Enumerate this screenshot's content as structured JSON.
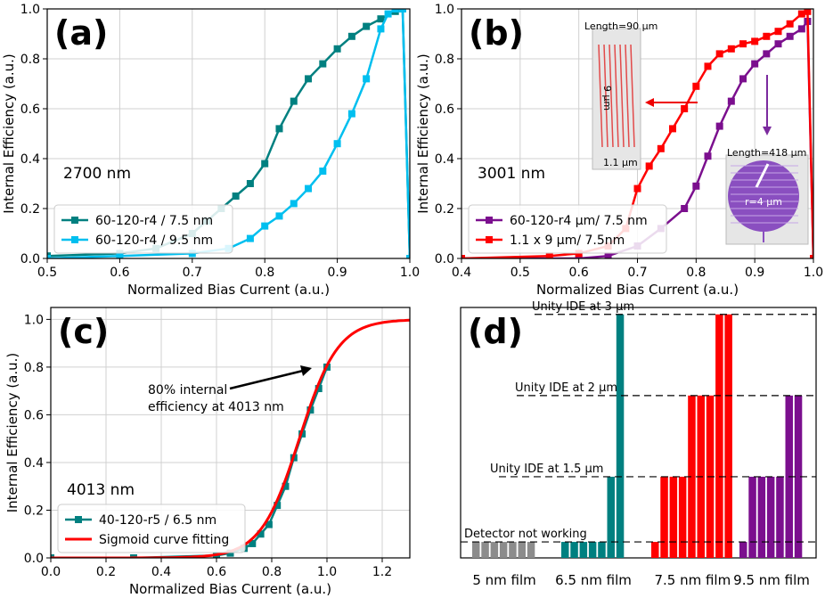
{
  "figure": {
    "panel_labels": [
      "(a)",
      "(b)",
      "(c)",
      "(d)"
    ]
  },
  "colors": {
    "teal": "#008080",
    "cyan": "#00bfef",
    "purple": "#7b0f8e",
    "red": "#ff0000",
    "gray": "#8c8c8c",
    "axis": "#000000",
    "grid": "#d0d0d0"
  },
  "chart_data": [
    {
      "id": "a",
      "type": "line",
      "panel_label": "(a)",
      "annotation": "2700 nm",
      "xlabel": "Normalized Bias Current (a.u.)",
      "ylabel": "Internal Efficiency (a.u.)",
      "xlim": [
        0.5,
        1.0
      ],
      "ylim": [
        0.0,
        1.0
      ],
      "xticks": [
        "0.5",
        "0.6",
        "0.7",
        "0.8",
        "0.9",
        "1.0"
      ],
      "yticks": [
        "0.0",
        "0.2",
        "0.4",
        "0.6",
        "0.8",
        "1.0"
      ],
      "legend_position": "lower-left",
      "series": [
        {
          "name": "60-120-r4 / 7.5 nm",
          "color": "teal",
          "x": [
            0.5,
            0.6,
            0.65,
            0.7,
            0.72,
            0.74,
            0.76,
            0.78,
            0.8,
            0.82,
            0.84,
            0.86,
            0.88,
            0.9,
            0.92,
            0.94,
            0.96,
            0.98,
            0.99,
            1.0
          ],
          "y": [
            0.01,
            0.02,
            0.04,
            0.1,
            0.15,
            0.2,
            0.25,
            0.3,
            0.38,
            0.52,
            0.63,
            0.72,
            0.78,
            0.84,
            0.89,
            0.93,
            0.96,
            0.99,
            1.0,
            0.0
          ]
        },
        {
          "name": "60-120-r4 / 9.5 nm",
          "color": "cyan",
          "x": [
            0.5,
            0.6,
            0.7,
            0.75,
            0.78,
            0.8,
            0.82,
            0.84,
            0.86,
            0.88,
            0.9,
            0.92,
            0.94,
            0.96,
            0.97,
            0.98,
            0.99,
            1.0
          ],
          "y": [
            0.0,
            0.01,
            0.02,
            0.04,
            0.08,
            0.13,
            0.17,
            0.22,
            0.28,
            0.35,
            0.46,
            0.58,
            0.72,
            0.92,
            0.98,
            1.0,
            1.0,
            0.0
          ]
        }
      ]
    },
    {
      "id": "b",
      "type": "line",
      "panel_label": "(b)",
      "annotation": "3001 nm",
      "xlabel": "Normalized Bias Current (a.u.)",
      "ylabel": "Internal Efficiency (a.u.)",
      "xlim": [
        0.4,
        1.0
      ],
      "ylim": [
        0.0,
        1.0
      ],
      "xticks": [
        "0.4",
        "0.5",
        "0.6",
        "0.7",
        "0.8",
        "0.9",
        "1.0"
      ],
      "yticks": [
        "0.0",
        "0.2",
        "0.4",
        "0.6",
        "0.8",
        "1.0"
      ],
      "legend_position": "lower-left",
      "inset_left": {
        "length_label": "Length=90 µm",
        "height_label": "9 µm",
        "width_label": "1.1 µm"
      },
      "inset_right": {
        "length_label": "Length=418 µm",
        "radius_label": "r=4 µm"
      },
      "series": [
        {
          "name": "60-120-r4 µm/ 7.5 nm",
          "color": "purple",
          "x": [
            0.4,
            0.6,
            0.65,
            0.7,
            0.74,
            0.78,
            0.8,
            0.82,
            0.84,
            0.86,
            0.88,
            0.9,
            0.92,
            0.94,
            0.96,
            0.98,
            0.99,
            1.0
          ],
          "y": [
            0.0,
            0.0,
            0.01,
            0.05,
            0.12,
            0.2,
            0.29,
            0.41,
            0.53,
            0.63,
            0.72,
            0.78,
            0.82,
            0.86,
            0.89,
            0.92,
            0.95,
            0.0
          ]
        },
        {
          "name": "1.1 x 9 µm/ 7.5nm",
          "color": "red",
          "x": [
            0.4,
            0.55,
            0.6,
            0.65,
            0.68,
            0.7,
            0.72,
            0.74,
            0.76,
            0.78,
            0.8,
            0.82,
            0.84,
            0.86,
            0.88,
            0.9,
            0.92,
            0.94,
            0.96,
            0.98,
            0.99,
            1.0
          ],
          "y": [
            0.0,
            0.01,
            0.02,
            0.05,
            0.12,
            0.28,
            0.37,
            0.44,
            0.52,
            0.6,
            0.69,
            0.77,
            0.82,
            0.84,
            0.86,
            0.87,
            0.89,
            0.91,
            0.94,
            0.98,
            0.99,
            0.0
          ]
        }
      ]
    },
    {
      "id": "c",
      "type": "line",
      "panel_label": "(c)",
      "annotation": "4013 nm",
      "arrow_note": [
        "80% internal",
        "efficiency at 4013 nm"
      ],
      "xlabel": "Normalized Bias Current (a.u.)",
      "ylabel": "Internal Efficiency (a.u.)",
      "xlim": [
        0.0,
        1.3
      ],
      "ylim": [
        0.0,
        1.05
      ],
      "xticks": [
        "0.0",
        "0.2",
        "0.4",
        "0.6",
        "0.8",
        "1.0",
        "1.2"
      ],
      "yticks": [
        "0.0",
        "0.2",
        "0.4",
        "0.6",
        "0.8",
        "1.0"
      ],
      "legend_position": "lower-left",
      "series": [
        {
          "name": "40-120-r5 / 6.5 nm",
          "color": "teal",
          "x": [
            0.0,
            0.3,
            0.6,
            0.65,
            0.7,
            0.73,
            0.76,
            0.79,
            0.82,
            0.85,
            0.88,
            0.91,
            0.94,
            0.97,
            1.0
          ],
          "y": [
            0.0,
            0.0,
            0.01,
            0.02,
            0.04,
            0.06,
            0.1,
            0.14,
            0.22,
            0.3,
            0.42,
            0.52,
            0.62,
            0.71,
            0.8
          ]
        },
        {
          "name": "Sigmoid curve fitting",
          "color": "red",
          "sigmoid": {
            "center": 0.9,
            "scale": 0.07
          },
          "x_range": [
            0.0,
            1.3
          ]
        }
      ]
    },
    {
      "id": "d",
      "type": "bar",
      "panel_label": "(d)",
      "reference_lines": [
        {
          "label": "Unity IDE at 3 µm",
          "value": 0.99
        },
        {
          "label": "Unity IDE at 2 µm",
          "value": 0.66
        },
        {
          "label": "Unity IDE at 1.5 µm",
          "value": 0.33
        },
        {
          "label": "Detector  not working",
          "value": 0.065
        }
      ],
      "groups": [
        {
          "label": "5 nm film",
          "color": "gray",
          "values": [
            0.065,
            0.065,
            0.065,
            0.065,
            0.065,
            0.065,
            0.065
          ]
        },
        {
          "label": "6.5 nm film",
          "color": "teal",
          "values": [
            0.065,
            0.065,
            0.065,
            0.065,
            0.065,
            0.33,
            0.99
          ]
        },
        {
          "label": "7.5 nm film",
          "color": "red",
          "values": [
            0.065,
            0.33,
            0.33,
            0.33,
            0.66,
            0.66,
            0.66,
            0.99,
            0.99
          ]
        },
        {
          "label": "9.5 nm film",
          "color": "purple",
          "values": [
            0.065,
            0.33,
            0.33,
            0.33,
            0.33,
            0.66,
            0.66
          ]
        }
      ]
    }
  ]
}
